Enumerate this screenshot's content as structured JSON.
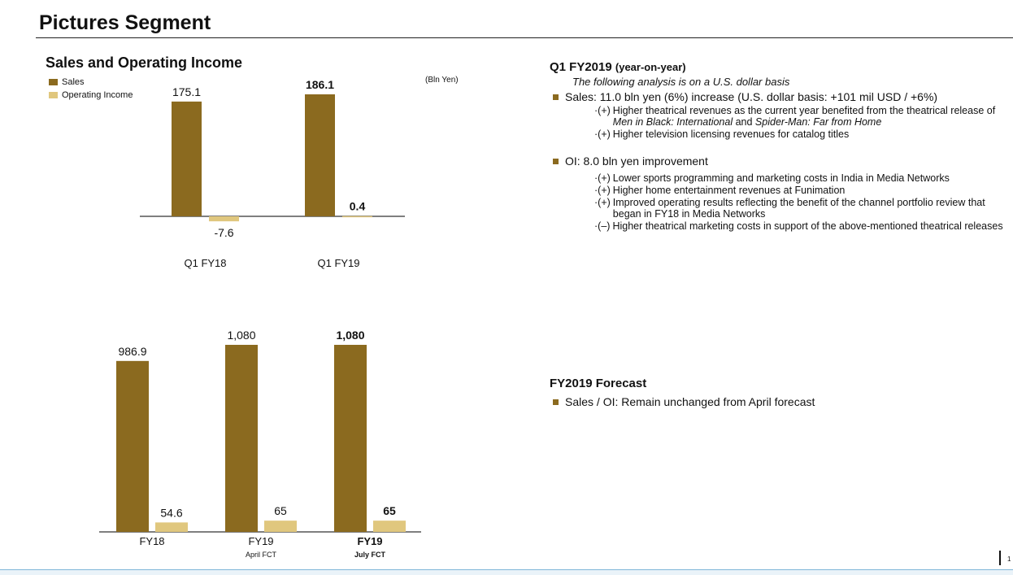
{
  "page": {
    "title": "Pictures Segment",
    "page_number": "1"
  },
  "colors": {
    "sales": "#8b6a1f",
    "oi": "#e0c77e",
    "axis": "#7f7f7f"
  },
  "left": {
    "section_title": "Sales and Operating Income",
    "unit": "(Bln Yen)",
    "legend": [
      {
        "label": "Sales",
        "color_key": "sales"
      },
      {
        "label": "Operating Income",
        "color_key": "oi"
      }
    ]
  },
  "chart_data": [
    {
      "type": "bar",
      "title": "Sales and Operating Income",
      "ylabel": "Bln Yen",
      "categories": [
        "Q1 FY18",
        "Q1 FY19"
      ],
      "category_sublabels": [
        "",
        ""
      ],
      "bold_categories": [
        false,
        false
      ],
      "series": [
        {
          "name": "Sales",
          "values": [
            175.1,
            186.1
          ],
          "labels": [
            "175.1",
            "186.1"
          ],
          "bold": [
            false,
            true
          ]
        },
        {
          "name": "Operating Income",
          "values": [
            -7.6,
            0.4
          ],
          "labels": [
            "-7.6",
            "0.4"
          ],
          "bold": [
            false,
            true
          ]
        }
      ]
    },
    {
      "type": "bar",
      "title": "",
      "ylabel": "Bln Yen",
      "categories": [
        "FY18",
        "FY19",
        "FY19"
      ],
      "category_sublabels": [
        "",
        "April FCT",
        "July FCT"
      ],
      "bold_categories": [
        false,
        false,
        true
      ],
      "series": [
        {
          "name": "Sales",
          "values": [
            986.9,
            1080,
            1080
          ],
          "labels": [
            "986.9",
            "1,080",
            "1,080"
          ],
          "bold": [
            false,
            false,
            true
          ]
        },
        {
          "name": "Operating Income",
          "values": [
            54.6,
            65,
            65
          ],
          "labels": [
            "54.6",
            "65",
            "65"
          ],
          "bold": [
            false,
            false,
            true
          ]
        }
      ]
    }
  ],
  "right": {
    "q1": {
      "heading": "Q1 FY2019",
      "heading_sub": "(year-on-year)",
      "note": "The following analysis is on a U.S. dollar basis",
      "sales_bullet": "Sales: 11.0 bln yen (6%) increase (U.S. dollar basis: +101 mil USD / +6%)",
      "sales_items": [
        {
          "mark": "·(+)",
          "text": "Higher theatrical revenues as the current year benefited from the theatrical release of Men in Black: International and Spider-Man: Far from Home"
        },
        {
          "mark": "·(+)",
          "text": "Higher television licensing revenues for catalog titles"
        }
      ],
      "oi_bullet": "OI: 8.0 bln yen improvement",
      "oi_items": [
        {
          "mark": "·(+)",
          "text": "Lower sports programming and marketing costs in India in Media Networks"
        },
        {
          "mark": "·(+)",
          "text": "Higher home entertainment revenues at Funimation"
        },
        {
          "mark": "·(+)",
          "text": "Improved operating results reflecting the benefit of the channel portfolio review that began in FY18 in Media Networks"
        },
        {
          "mark": "·(–)",
          "text": "Higher theatrical marketing costs in support of the above-mentioned theatrical releases"
        }
      ]
    },
    "forecast": {
      "heading": "FY2019 Forecast",
      "bullet": "Sales / OI: Remain unchanged from April forecast"
    }
  }
}
